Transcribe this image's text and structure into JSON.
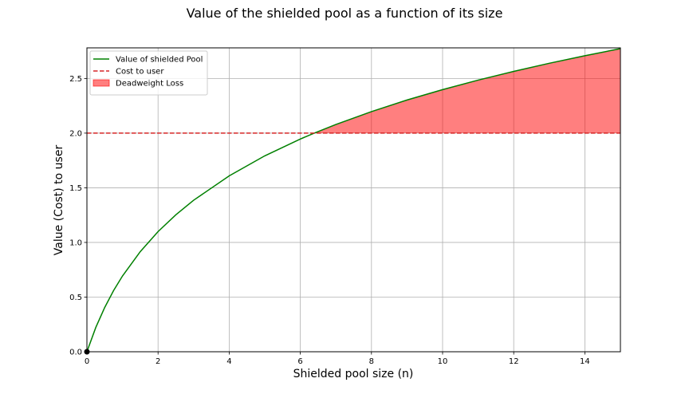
{
  "chart_data": {
    "type": "line",
    "title": "Value of the shielded pool as a function of its size",
    "xlabel": "Shielded pool size (n)",
    "ylabel": "Value (Cost) to user",
    "xlim": [
      0,
      15
    ],
    "ylim": [
      0,
      2.78
    ],
    "xticks": [
      0,
      2,
      4,
      6,
      8,
      10,
      12,
      14
    ],
    "yticks": [
      0.0,
      0.5,
      1.0,
      1.5,
      2.0,
      2.5
    ],
    "xtick_labels": [
      "0",
      "2",
      "4",
      "6",
      "8",
      "10",
      "12",
      "14"
    ],
    "ytick_labels": [
      "0.0",
      "0.5",
      "1.0",
      "1.5",
      "2.0",
      "2.5"
    ],
    "grid": true,
    "legend_position": "upper-left",
    "series": [
      {
        "name": "Value of shielded Pool",
        "type": "line",
        "color": "#008000",
        "x": [
          0,
          0.25,
          0.5,
          0.75,
          1,
          1.5,
          2,
          2.5,
          3,
          4,
          5,
          6,
          6.39,
          7,
          8,
          9,
          10,
          11,
          12,
          13,
          14,
          15
        ],
        "y": [
          0,
          0.223,
          0.405,
          0.56,
          0.693,
          0.916,
          1.099,
          1.253,
          1.386,
          1.609,
          1.792,
          1.946,
          2.0,
          2.079,
          2.197,
          2.303,
          2.398,
          2.485,
          2.565,
          2.639,
          2.708,
          2.773
        ]
      },
      {
        "name": "Cost to user",
        "type": "hline",
        "color": "#d62728",
        "style": "dashed",
        "y": 2.0
      },
      {
        "name": "Deadweight Loss",
        "type": "fill_between",
        "color": "#ff0000",
        "opacity": 0.5,
        "x_from": 6.39,
        "x_to": 15,
        "lower": 2.0
      }
    ],
    "markers": [
      {
        "x": 0,
        "y": 0,
        "color": "#000000"
      }
    ]
  }
}
